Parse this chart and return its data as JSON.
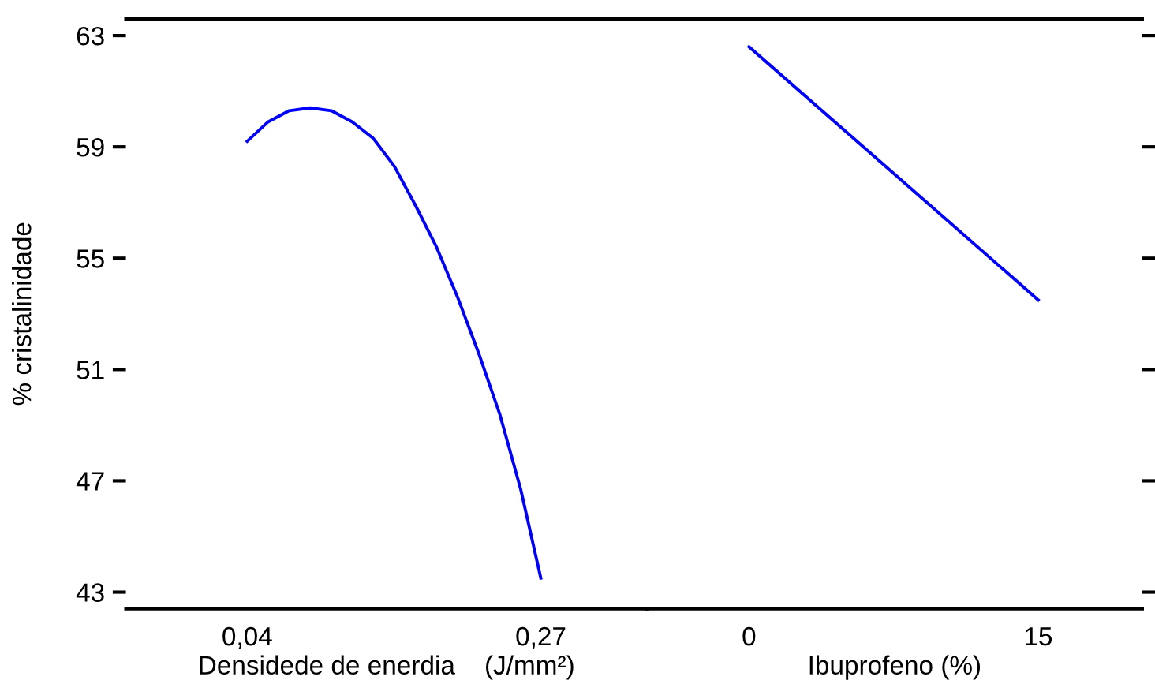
{
  "chart_data": [
    {
      "type": "line",
      "xlabel": "Densidede de enerdia    (J/mm²)",
      "ylabel": "% cristalinidade",
      "x": [
        0.04,
        0.0564,
        0.0729,
        0.0894,
        0.1059,
        0.1223,
        0.1389,
        0.1553,
        0.1718,
        0.1883,
        0.2048,
        0.2212,
        0.2378,
        0.2542,
        0.27
      ],
      "series": [
        {
          "color": "#0000ff",
          "values": [
            59.2,
            59.9,
            60.3,
            60.4,
            60.3,
            59.9,
            59.3,
            58.3,
            56.9,
            55.4,
            53.6,
            51.6,
            49.4,
            46.7,
            43.5
          ]
        }
      ],
      "xlim": [
        -0.055,
        0.353
      ],
      "xticks": [
        {
          "value": 0.04,
          "label": "0,04"
        },
        {
          "value": 0.27,
          "label": "0,27"
        }
      ],
      "ylim": [
        42.4,
        63.6
      ],
      "yticks": [
        43,
        47,
        51,
        55,
        59,
        63
      ],
      "grid": false
    },
    {
      "type": "line",
      "xlabel": "Ibuprofeno (%)",
      "x": [
        0,
        15
      ],
      "series": [
        {
          "color": "#0000ff",
          "values": [
            62.6,
            53.5
          ]
        }
      ],
      "xlim": [
        -5.3,
        20.4
      ],
      "xticks": [
        0,
        15
      ],
      "ylim": [
        42.4,
        63.6
      ],
      "yticks": [
        43,
        47,
        51,
        55,
        59,
        63
      ],
      "tick_labels": "x",
      "grid": false
    }
  ]
}
